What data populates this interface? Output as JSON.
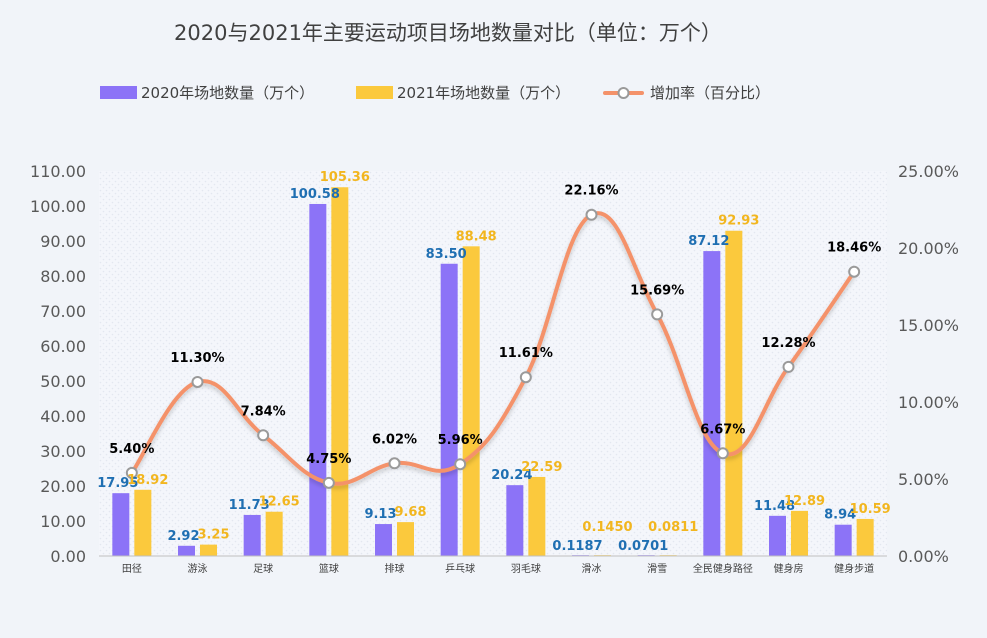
{
  "chart_data": {
    "type": "bar",
    "title": "2020与2021年主要运动项目场地数量对比（单位：万个）",
    "categories": [
      "田径",
      "游泳",
      "足球",
      "篮球",
      "排球",
      "乒乓球",
      "羽毛球",
      "滑冰",
      "滑雪",
      "全民健身路径",
      "健身房",
      "健身步道"
    ],
    "series": [
      {
        "name": "2020年场地数量（万个）",
        "kind": "bar",
        "axis": "left",
        "color": "#8c73f7",
        "values": [
          17.95,
          2.92,
          11.73,
          100.58,
          9.13,
          83.5,
          20.24,
          0.1187,
          0.0701,
          87.12,
          11.48,
          8.94
        ],
        "labels": [
          "17.95",
          "2.92",
          "11.73",
          "100.58",
          "9.13",
          "83.50",
          "20.24",
          "0.1187",
          "0.0701",
          "87.12",
          "11.48",
          "8.94"
        ]
      },
      {
        "name": "2021年场地数量（万个）",
        "kind": "bar",
        "axis": "left",
        "color": "#fbc93d",
        "values": [
          18.92,
          3.25,
          12.65,
          105.36,
          9.68,
          88.48,
          22.59,
          0.145,
          0.0811,
          92.93,
          12.89,
          10.59
        ],
        "labels": [
          "18.92",
          "3.25",
          "12.65",
          "105.36",
          "9.68",
          "88.48",
          "22.59",
          "0.1450",
          "0.0811",
          "92.93",
          "12.89",
          "10.59"
        ]
      },
      {
        "name": "增加率（百分比）",
        "kind": "line",
        "axis": "right",
        "color": "#f4926a",
        "values": [
          5.4,
          11.3,
          7.84,
          4.75,
          6.02,
          5.96,
          11.61,
          22.16,
          15.69,
          6.67,
          12.28,
          18.46
        ],
        "labels": [
          "5.40%",
          "11.30%",
          "7.84%",
          "4.75%",
          "6.02%",
          "5.96%",
          "11.61%",
          "22.16%",
          "15.69%",
          "6.67%",
          "12.28%",
          "18.46%"
        ]
      }
    ],
    "y_left": {
      "min": 0,
      "max": 110,
      "step": 10,
      "ticks": [
        "0.00",
        "10.00",
        "20.00",
        "30.00",
        "40.00",
        "50.00",
        "60.00",
        "70.00",
        "80.00",
        "90.00",
        "100.00",
        "110.00"
      ]
    },
    "y_right": {
      "min": 0,
      "max": 25,
      "step": 5,
      "ticks": [
        "0.00%",
        "5.00%",
        "10.00%",
        "15.00%",
        "20.00%",
        "25.00%"
      ]
    },
    "legend_position": "top",
    "line_smooth": true
  }
}
